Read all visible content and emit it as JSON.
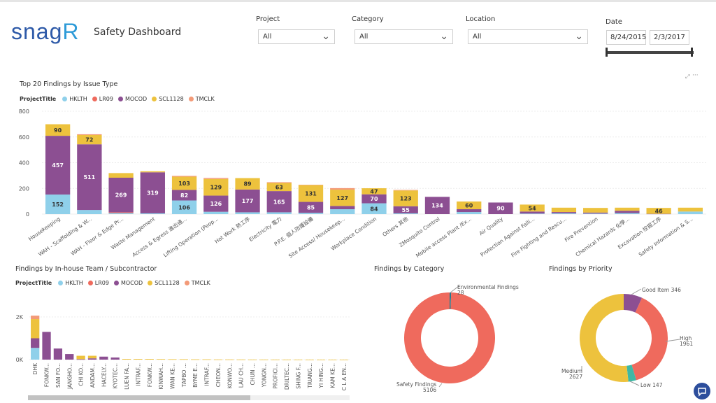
{
  "header": {
    "logo_main": "snag",
    "logo_accent": "R",
    "title": "Safety Dashboard"
  },
  "filters": {
    "project": {
      "label": "Project",
      "value": "All"
    },
    "category": {
      "label": "Category",
      "value": "All"
    },
    "location": {
      "label": "Location",
      "value": "All"
    },
    "date": {
      "label": "Date",
      "start": "8/24/2015",
      "end": "2/3/2017"
    }
  },
  "colors": {
    "HKLTH": "#8fd0ea",
    "LR09": "#ef6a5d",
    "MOCOD": "#8c4f92",
    "SCL1128": "#edc23d",
    "TMCLK": "#f39a78",
    "Environmental": "#2a7a8c",
    "Safety": "#ef6a5d",
    "GoodItem": "#8c4f92",
    "High": "#ef6a5d",
    "Low": "#3fb8a4",
    "Medium": "#edc23d"
  },
  "legend": {
    "title": "ProjectTitle",
    "items": [
      "HKLTH",
      "LR09",
      "MOCOD",
      "SCL1128",
      "TMCLK"
    ]
  },
  "chart_data": [
    {
      "type": "bar",
      "title": "Top 20 Findings by Issue Type",
      "stacked": true,
      "ylim": [
        0,
        800
      ],
      "yticks": [
        "800",
        "600",
        "400",
        "200",
        "0"
      ],
      "categories": [
        "Housekeeping",
        "WAH - Scaffolding & W...",
        "WAH - Floor & Edge Pr...",
        "Waste Management",
        "Access & Egress 進出通...",
        "Lifting Operation (Peop...",
        "Hot Work 熱工序",
        "Electricity 電力",
        "P.P.E. 個人防護設備",
        "Site Access/ Housekeep...",
        "Workplace Condition",
        "Others 其他",
        "ZMosquito Control",
        "Mobile access Plant /Ex...",
        "Air Quality",
        "Protection Against Falli...",
        "Fire Fighting and Rescu...",
        "Fire Prevention",
        "Chemical Hazards 化學...",
        "Excavation 挖掘工序",
        "Safety Information & S..."
      ],
      "series": [
        {
          "name": "HKLTH",
          "values": [
            152,
            32,
            8,
            6,
            106,
            18,
            14,
            14,
            10,
            38,
            84,
            6,
            0,
            16,
            0,
            4,
            6,
            4,
            8,
            0,
            20
          ]
        },
        {
          "name": "LR09",
          "values": [
            0,
            0,
            6,
            0,
            0,
            0,
            0,
            0,
            0,
            0,
            0,
            0,
            0,
            0,
            0,
            0,
            0,
            0,
            0,
            0,
            0
          ]
        },
        {
          "name": "MOCOD",
          "values": [
            457,
            511,
            269,
            319,
            82,
            126,
            177,
            165,
            85,
            25,
            70,
            55,
            134,
            22,
            90,
            16,
            10,
            8,
            18,
            2,
            0
          ]
        },
        {
          "name": "SCL1128",
          "values": [
            90,
            72,
            36,
            8,
            103,
            129,
            89,
            63,
            131,
            127,
            47,
            123,
            0,
            60,
            0,
            54,
            34,
            36,
            24,
            46,
            30
          ]
        },
        {
          "name": "TMCLK",
          "values": [
            0,
            6,
            0,
            0,
            6,
            8,
            0,
            6,
            2,
            12,
            0,
            4,
            0,
            0,
            0,
            0,
            0,
            0,
            0,
            0,
            0
          ]
        }
      ],
      "value_labels": [
        {
          "cat": 0,
          "series": "HKLTH",
          "text": "152"
        },
        {
          "cat": 0,
          "series": "MOCOD",
          "text": "457"
        },
        {
          "cat": 0,
          "series": "SCL1128",
          "text": "90"
        },
        {
          "cat": 1,
          "series": "MOCOD",
          "text": "511"
        },
        {
          "cat": 1,
          "series": "SCL1128",
          "text": "72"
        },
        {
          "cat": 2,
          "series": "MOCOD",
          "text": "269"
        },
        {
          "cat": 3,
          "series": "MOCOD",
          "text": "319"
        },
        {
          "cat": 4,
          "series": "HKLTH",
          "text": "106"
        },
        {
          "cat": 4,
          "series": "MOCOD",
          "text": "82"
        },
        {
          "cat": 4,
          "series": "SCL1128",
          "text": "103"
        },
        {
          "cat": 5,
          "series": "MOCOD",
          "text": "126"
        },
        {
          "cat": 5,
          "series": "SCL1128",
          "text": "129"
        },
        {
          "cat": 6,
          "series": "MOCOD",
          "text": "177"
        },
        {
          "cat": 6,
          "series": "SCL1128",
          "text": "89"
        },
        {
          "cat": 7,
          "series": "MOCOD",
          "text": "165"
        },
        {
          "cat": 7,
          "series": "SCL1128",
          "text": "63"
        },
        {
          "cat": 8,
          "series": "MOCOD",
          "text": "85"
        },
        {
          "cat": 8,
          "series": "SCL1128",
          "text": "131"
        },
        {
          "cat": 9,
          "series": "SCL1128",
          "text": "127"
        },
        {
          "cat": 10,
          "series": "HKLTH",
          "text": "84"
        },
        {
          "cat": 10,
          "series": "MOCOD",
          "text": "70"
        },
        {
          "cat": 10,
          "series": "SCL1128",
          "text": "47"
        },
        {
          "cat": 11,
          "series": "MOCOD",
          "text": "55"
        },
        {
          "cat": 11,
          "series": "SCL1128",
          "text": "123"
        },
        {
          "cat": 12,
          "series": "MOCOD",
          "text": "134"
        },
        {
          "cat": 13,
          "series": "SCL1128",
          "text": "60"
        },
        {
          "cat": 14,
          "series": "MOCOD",
          "text": "90"
        },
        {
          "cat": 15,
          "series": "SCL1128",
          "text": "54"
        },
        {
          "cat": 19,
          "series": "SCL1128",
          "text": "46"
        }
      ]
    },
    {
      "type": "bar",
      "title": "Findings by In-house Team / Subcontractor",
      "stacked": true,
      "ylim": [
        0,
        2000
      ],
      "yticks": [
        "2K",
        "0K"
      ],
      "categories": [
        "DHK",
        "FONKW...",
        "SAN FO...",
        "JANGHO...",
        "CHI KO...",
        "ANDAM...",
        "HACELY...",
        "KYOTEC...",
        "LUEN FA...",
        "INTRAF...",
        "FONKW...",
        "KINWAH...",
        "WAN KE...",
        "TAPBO ...",
        "BYME E...",
        "INTRAF...",
        "CHEON...",
        "KONWO...",
        "LAU CH...",
        "CHUN ...",
        "YONGN...",
        "PROFICI...",
        "DRILTEC...",
        "SHING F...",
        "TRIANG...",
        "YI HING...",
        "KAM KE...",
        "C L A EN..."
      ],
      "series": [
        {
          "name": "HKLTH",
          "values": [
            550,
            0,
            0,
            0,
            0,
            0,
            0,
            0,
            0,
            0,
            0,
            0,
            0,
            0,
            0,
            0,
            0,
            0,
            0,
            0,
            0,
            0,
            0,
            0,
            0,
            0,
            0,
            0
          ]
        },
        {
          "name": "LR09",
          "values": [
            0,
            0,
            0,
            0,
            0,
            0,
            0,
            0,
            0,
            0,
            0,
            0,
            0,
            0,
            0,
            0,
            0,
            0,
            0,
            0,
            0,
            0,
            0,
            0,
            0,
            0,
            0,
            0
          ]
        },
        {
          "name": "MOCOD",
          "values": [
            450,
            1300,
            520,
            260,
            20,
            60,
            140,
            100,
            0,
            0,
            0,
            0,
            0,
            0,
            0,
            0,
            0,
            0,
            0,
            0,
            0,
            0,
            0,
            0,
            0,
            0,
            0,
            0
          ]
        },
        {
          "name": "SCL1128",
          "values": [
            900,
            0,
            0,
            0,
            160,
            120,
            0,
            0,
            30,
            30,
            30,
            25,
            20,
            20,
            15,
            15,
            10,
            10,
            8,
            6,
            6,
            5,
            4,
            4,
            3,
            3,
            2,
            2
          ]
        },
        {
          "name": "TMCLK",
          "values": [
            160,
            0,
            0,
            0,
            0,
            0,
            0,
            0,
            0,
            0,
            0,
            0,
            0,
            0,
            0,
            0,
            0,
            0,
            0,
            0,
            0,
            0,
            0,
            0,
            0,
            0,
            0,
            0
          ]
        }
      ]
    },
    {
      "type": "pie",
      "donut": true,
      "title": "Findings by Category",
      "slices": [
        {
          "label": "Environmental Findings",
          "value": 28,
          "color_key": "Environmental"
        },
        {
          "label": "Safety Findings",
          "value": 5106,
          "color_key": "Safety"
        }
      ]
    },
    {
      "type": "pie",
      "donut": true,
      "title": "Findings by Priority",
      "slices": [
        {
          "label": "Good Item",
          "value": 346,
          "color_key": "GoodItem"
        },
        {
          "label": "High",
          "value": 1961,
          "color_key": "High"
        },
        {
          "label": "Low",
          "value": 147,
          "color_key": "Low"
        },
        {
          "label": "Medium",
          "value": 2627,
          "color_key": "Medium"
        }
      ]
    }
  ]
}
